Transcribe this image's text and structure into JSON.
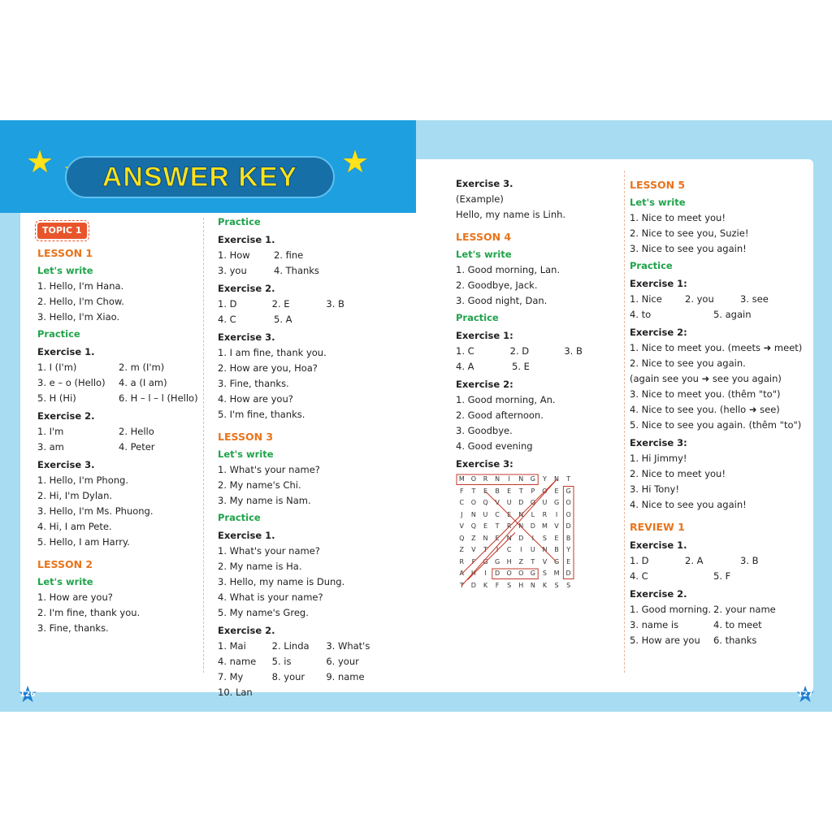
{
  "title": "ANSWER KEY",
  "page_numbers": [
    "126",
    "127"
  ],
  "columns": [
    [
      {
        "topic": "TOPIC 1"
      },
      {
        "h": "LESSON 1"
      },
      {
        "s": "Let's write"
      },
      {
        "t": "1. Hello, I'm Hana."
      },
      {
        "t": "2. Hello, I'm Chow."
      },
      {
        "t": "3. Hello, I'm Xiao."
      },
      {
        "s": "Practice"
      },
      {
        "e": "Exercise 1."
      },
      {
        "r": [
          "1. I (I'm)",
          "2. m (I'm)"
        ]
      },
      {
        "r": [
          "3. e – o (Hello)",
          "4. a (I am)"
        ]
      },
      {
        "r": [
          "5. H (Hi)",
          "6. H – l – l (Hello)"
        ]
      },
      {
        "e": "Exercise 2."
      },
      {
        "r": [
          "1. I'm",
          "2. Hello"
        ]
      },
      {
        "r": [
          "3. am",
          "4. Peter"
        ]
      },
      {
        "e": "Exercise 3."
      },
      {
        "t": "1. Hello, I'm Phong."
      },
      {
        "t": "2. Hi, I'm Dylan."
      },
      {
        "t": "3. Hello, I'm Ms. Phuong."
      },
      {
        "t": "4. Hi, I am Pete."
      },
      {
        "t": "5. Hello, I am Harry."
      },
      {
        "h": "LESSON 2"
      },
      {
        "s": "Let's write"
      },
      {
        "t": "1. How are you?"
      },
      {
        "t": "2. I'm fine, thank you."
      },
      {
        "t": "3. Fine, thanks."
      }
    ],
    [
      {
        "s": "Practice"
      },
      {
        "e": "Exercise 1."
      },
      {
        "r": [
          "1. How",
          "2. fine"
        ]
      },
      {
        "r": [
          "3. you",
          "4. Thanks"
        ]
      },
      {
        "e": "Exercise 2."
      },
      {
        "r": [
          "1. D",
          "2. E",
          "3. B"
        ]
      },
      {
        "r": [
          "4. C",
          "5. A"
        ]
      },
      {
        "e": "Exercise 3."
      },
      {
        "t": "1. I am fine, thank you."
      },
      {
        "t": "2. How are you, Hoa?"
      },
      {
        "t": "3. Fine, thanks."
      },
      {
        "t": "4. How are you?"
      },
      {
        "t": "5. I'm fine, thanks."
      },
      {
        "h": "LESSON 3"
      },
      {
        "s": "Let's write"
      },
      {
        "t": "1. What's your name?"
      },
      {
        "t": "2. My name's Chi."
      },
      {
        "t": "3. My name is Nam."
      },
      {
        "s": "Practice"
      },
      {
        "e": "Exercise 1."
      },
      {
        "t": "1. What's your name?"
      },
      {
        "t": "2. My name is Ha."
      },
      {
        "t": "3. Hello, my name is Dung."
      },
      {
        "t": "4. What is your name?"
      },
      {
        "t": "5. My name's Greg."
      },
      {
        "e": "Exercise 2."
      },
      {
        "r": [
          "1. Mai",
          "2. Linda",
          "3. What's"
        ]
      },
      {
        "r": [
          "4. name",
          "5. is",
          "6. your"
        ]
      },
      {
        "r": [
          "7. My",
          "8. your",
          "9. name"
        ]
      },
      {
        "t": "10. Lan"
      }
    ],
    [
      {
        "e": "Exercise 3."
      },
      {
        "t": "(Example)"
      },
      {
        "t": "Hello, my name is Linh."
      },
      {
        "h": "LESSON 4"
      },
      {
        "s": "Let's write"
      },
      {
        "t": "1. Good morning, Lan."
      },
      {
        "t": "2. Goodbye, Jack."
      },
      {
        "t": "3. Good night, Dan."
      },
      {
        "s": "Practice"
      },
      {
        "e": "Exercise 1:"
      },
      {
        "r": [
          "1. C",
          "2. D",
          "3. B"
        ]
      },
      {
        "r": [
          "4. A",
          "5. E"
        ]
      },
      {
        "e": "Exercise 2:"
      },
      {
        "t": "1. Good morning, An."
      },
      {
        "t": "2. Good afternoon."
      },
      {
        "t": "3. Goodbye."
      },
      {
        "t": "4. Good evening"
      },
      {
        "e": "Exercise 3:"
      },
      {
        "grid": [
          "MORNINGYNT",
          "FTEBETPOEG",
          "COQVUDOUGO",
          "JNUCENLRIO",
          "VQETRNDMVD",
          "QZNENDISEB",
          "ZVTICIUNBY",
          "RFGGHZTVGE",
          "AHIDOOGSMD",
          "TDKFSHNKSS"
        ]
      }
    ],
    [
      {
        "h": "LESSON 5"
      },
      {
        "s": "Let's write"
      },
      {
        "t": "1. Nice to meet you!"
      },
      {
        "t": "2. Nice to see you, Suzie!"
      },
      {
        "t": "3. Nice to see you again!"
      },
      {
        "s": "Practice"
      },
      {
        "e": "Exercise 1:"
      },
      {
        "r": [
          "1. Nice",
          "2. you",
          "3. see"
        ]
      },
      {
        "r": [
          "4. to",
          "5. again"
        ]
      },
      {
        "e": "Exercise 2:"
      },
      {
        "t": "1. Nice to meet you. (meets ➜ meet)"
      },
      {
        "t": "2. Nice to see you again."
      },
      {
        "t": "(again see you ➜ see you again)"
      },
      {
        "t": "3. Nice to meet you. (thêm \"to\")"
      },
      {
        "t": "4. Nice to see you. (hello ➜ see)"
      },
      {
        "t": "5. Nice to see you again. (thêm \"to\")"
      },
      {
        "e": "Exercise 3:"
      },
      {
        "t": "1. Hi Jimmy!"
      },
      {
        "t": "2. Nice to meet you!"
      },
      {
        "t": "3. Hi Tony!"
      },
      {
        "t": "4. Nice to see you again!"
      },
      {
        "h": "REVIEW 1"
      },
      {
        "e": "Exercise 1."
      },
      {
        "r": [
          "1. D",
          "2. A",
          "3. B"
        ]
      },
      {
        "r": [
          "4. C",
          "5. F"
        ]
      },
      {
        "e": "Exercise 2."
      },
      {
        "r": [
          "1. Good morning.",
          "2. your name"
        ]
      },
      {
        "r": [
          "3. name is",
          "4. to meet"
        ]
      },
      {
        "r": [
          "5. How are you",
          "6. thanks"
        ]
      }
    ]
  ],
  "colors": {
    "lesson": "#e8741c",
    "section": "#1fa34a",
    "header_blue": "#1d9fe0",
    "band_blue": "#a8dcf2",
    "title_yellow": "#ffe21a",
    "grid_box": "#c0392b"
  }
}
